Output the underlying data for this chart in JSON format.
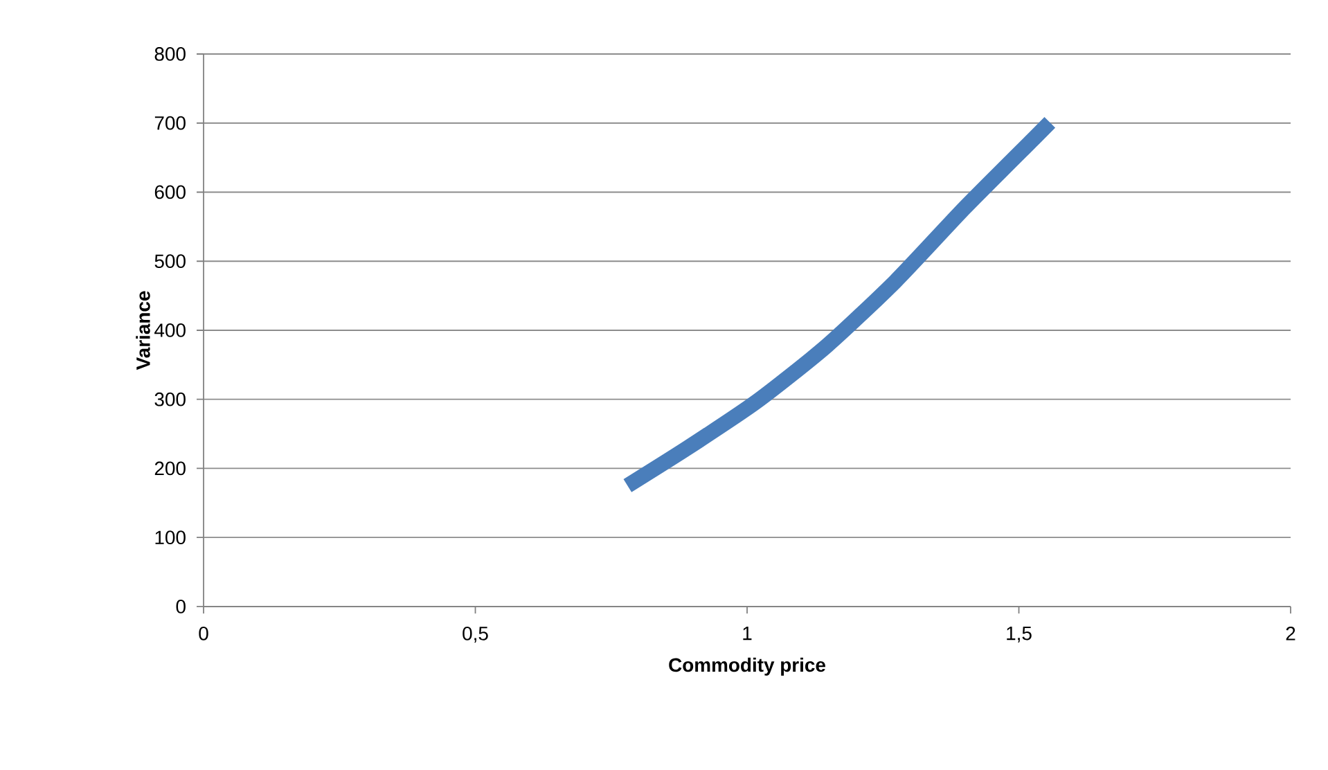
{
  "chart_data": {
    "type": "line",
    "xlabel": "Commodity price",
    "ylabel": "Variance",
    "xlim": [
      0,
      2
    ],
    "xticks": [
      0,
      {
        "value": 0.5,
        "label": "0,5"
      },
      1,
      {
        "value": 1.5,
        "label": "1,5"
      },
      2
    ],
    "ylim": [
      0,
      800
    ],
    "yticks": [
      0,
      100,
      200,
      300,
      400,
      500,
      600,
      700,
      800
    ],
    "grid": "y",
    "legend": false,
    "marker": "none",
    "line_style": "solid",
    "series": [
      {
        "color": "#4a7ebb",
        "x": [
          0.78,
          0.891,
          1.018,
          1.146,
          1.273,
          1.4,
          1.528,
          1.557
        ],
        "values": [
          175,
          230,
          297,
          377,
          471,
          577,
          678,
          701
        ]
      }
    ]
  }
}
